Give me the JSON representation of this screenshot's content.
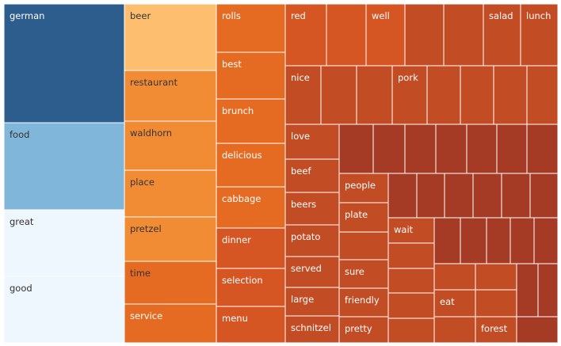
{
  "chart_data": {
    "type": "treemap",
    "title": "",
    "colors": {
      "blue_dark": "#2c5d8c",
      "blue_mid": "#80b6d9",
      "blue_light": "#eef6fe",
      "orange_light": "#fdbf6f",
      "orange_mid": "#f28c34",
      "orange": "#e66b22",
      "orange_red": "#d55523",
      "rust": "#c24c24",
      "rust_dark": "#a63b25"
    },
    "labels": [
      "german",
      "food",
      "great",
      "good",
      "beer",
      "restaurant",
      "waldhorn",
      "place",
      "pretzel",
      "time",
      "service",
      "rolls",
      "best",
      "brunch",
      "delicious",
      "cabbage",
      "dinner",
      "selection",
      "menu",
      "red",
      "well",
      "salad",
      "lunch",
      "nice",
      "pork",
      "love",
      "beef",
      "beers",
      "potato",
      "served",
      "large",
      "schnitzel",
      "people",
      "plate",
      "sure",
      "friendly",
      "pretty",
      "wait",
      "eat",
      "forest"
    ]
  }
}
